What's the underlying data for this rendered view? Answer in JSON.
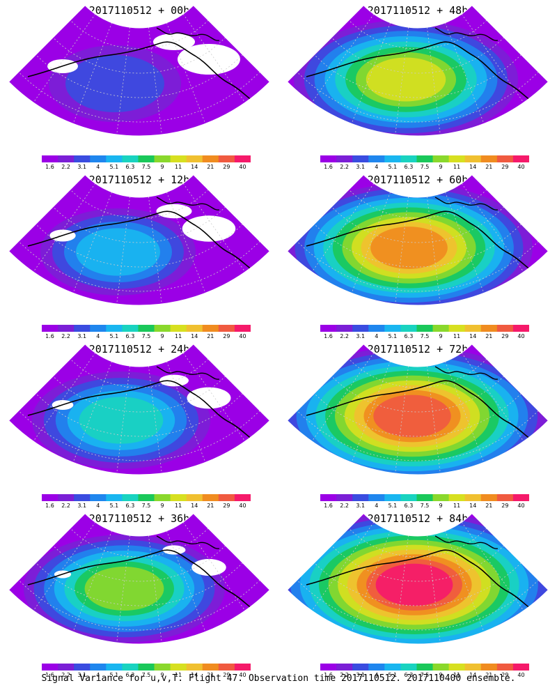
{
  "chart_data": {
    "type": "heatmap",
    "projection": "polar sector map (North Pacific / North America)",
    "variable": "Signal Variance for u,v,T",
    "colorbar": {
      "levels": [
        "1.6",
        "2.2",
        "3.1",
        "4",
        "5.1",
        "6.3",
        "7.5",
        "9",
        "11",
        "14",
        "21",
        "29",
        "40"
      ],
      "colors": [
        "#9b00e6",
        "#7b1fd6",
        "#3a4ce0",
        "#1f86ee",
        "#19b6f0",
        "#19d3c0",
        "#1ac85a",
        "#8ad82c",
        "#d7e020",
        "#f0c030",
        "#f08c20",
        "#f05a40",
        "#f51a6a"
      ]
    },
    "panels": [
      {
        "title": "2017110512 + 00h",
        "valid_time": "2017110512",
        "lead": "00h",
        "intensity": 0.0
      },
      {
        "title": "2017110512 + 48h",
        "valid_time": "2017110512",
        "lead": "48h",
        "intensity": 0.6
      },
      {
        "title": "2017110512 + 12h",
        "valid_time": "2017110512",
        "lead": "12h",
        "intensity": 0.15
      },
      {
        "title": "2017110512 + 60h",
        "valid_time": "2017110512",
        "lead": "60h",
        "intensity": 0.75
      },
      {
        "title": "2017110512 + 24h",
        "valid_time": "2017110512",
        "lead": "24h",
        "intensity": 0.3
      },
      {
        "title": "2017110512 + 72h",
        "valid_time": "2017110512",
        "lead": "72h",
        "intensity": 0.9
      },
      {
        "title": "2017110512 + 36h",
        "valid_time": "2017110512",
        "lead": "36h",
        "intensity": 0.45
      },
      {
        "title": "2017110512 + 84h",
        "valid_time": "2017110512",
        "lead": "84h",
        "intensity": 1.0
      }
    ]
  },
  "caption": "Signal Variance for u,v,T. Flight 47. Observation time 2017110512. 2017110400 ensemble."
}
